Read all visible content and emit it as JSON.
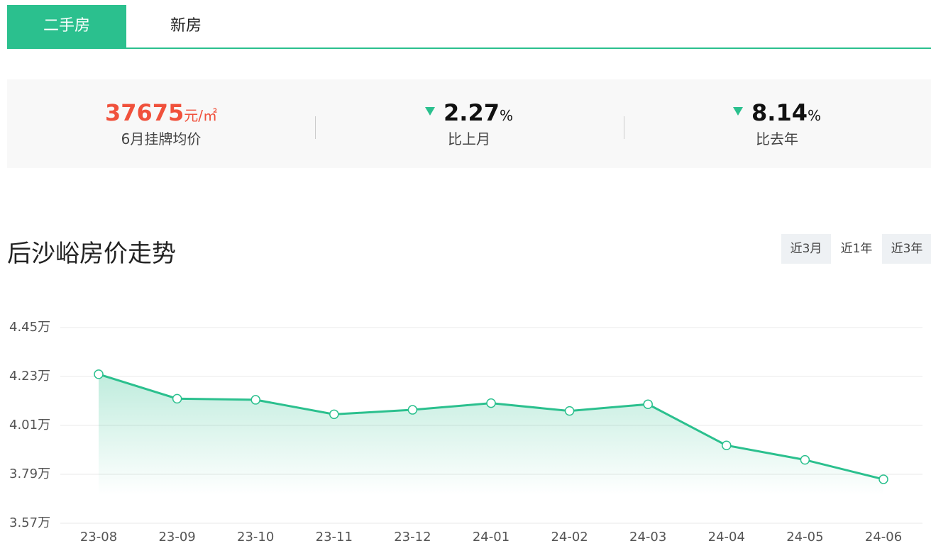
{
  "tabs": [
    {
      "label": "二手房",
      "active": true
    },
    {
      "label": "新房",
      "active": false
    }
  ],
  "stats": [
    {
      "value": "37675",
      "unit": "元/㎡",
      "label": "6月挂牌均价"
    },
    {
      "value": "2.27",
      "unit": "%",
      "label": "比上月",
      "direction": "down"
    },
    {
      "value": "8.14",
      "unit": "%",
      "label": "比去年",
      "direction": "down"
    }
  ],
  "ranges": [
    {
      "label": "近3月",
      "active": false
    },
    {
      "label": "近1年",
      "active": true
    },
    {
      "label": "近3年",
      "active": false
    }
  ],
  "chart_data": {
    "type": "line",
    "title": "后沙峪房价走势",
    "categories": [
      "23-08",
      "23-09",
      "23-10",
      "23-11",
      "23-12",
      "24-01",
      "24-02",
      "24-03",
      "24-04",
      "24-05",
      "24-06"
    ],
    "values": [
      4.24,
      4.13,
      4.125,
      4.06,
      4.08,
      4.11,
      4.075,
      4.105,
      3.92,
      3.855,
      3.7675
    ],
    "color": "#2bc08e",
    "ylim": [
      3.57,
      4.45
    ],
    "yticks": [
      {
        "value": 3.57,
        "label": "3.57万"
      },
      {
        "value": 3.79,
        "label": "3.79万"
      },
      {
        "value": 4.01,
        "label": "4.01万"
      },
      {
        "value": 4.23,
        "label": "4.23万"
      },
      {
        "value": 4.45,
        "label": "4.45万"
      }
    ],
    "grid": true
  }
}
